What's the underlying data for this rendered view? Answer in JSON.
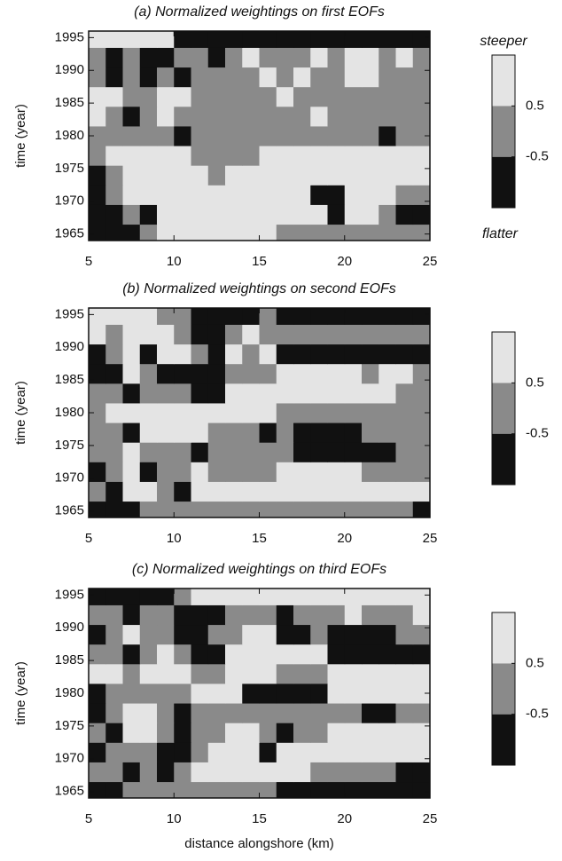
{
  "chart_data": [
    {
      "type": "heatmap",
      "title": "(a) Normalized weightings on first EOFs",
      "ylabel": "time (year)",
      "x": [
        5.5,
        6.5,
        7.5,
        8.5,
        9.5,
        10.5,
        11.5,
        12.5,
        13.5,
        14.5,
        15.5,
        16.5,
        17.5,
        18.5,
        19.5,
        20.5,
        21.5,
        22.5,
        23.5,
        24.5
      ],
      "y": [
        1965,
        1968,
        1971,
        1974,
        1977,
        1980,
        1983,
        1986,
        1989,
        1992,
        1995
      ],
      "z": [
        [
          -1,
          -1,
          -1,
          0,
          1,
          1,
          1,
          1,
          1,
          1,
          1,
          0,
          0,
          0,
          0,
          0,
          0,
          0,
          0,
          0
        ],
        [
          -1,
          -1,
          0,
          -1,
          1,
          1,
          1,
          1,
          1,
          1,
          1,
          1,
          1,
          1,
          -1,
          1,
          1,
          0,
          -1,
          -1
        ],
        [
          -1,
          0,
          1,
          1,
          1,
          1,
          1,
          1,
          1,
          1,
          1,
          1,
          1,
          -1,
          -1,
          1,
          1,
          1,
          0,
          0
        ],
        [
          -1,
          0,
          1,
          1,
          1,
          1,
          1,
          0,
          1,
          1,
          1,
          1,
          1,
          1,
          1,
          1,
          1,
          1,
          1,
          1
        ],
        [
          0,
          1,
          1,
          1,
          1,
          1,
          0,
          0,
          0,
          0,
          1,
          1,
          1,
          1,
          1,
          1,
          1,
          1,
          1,
          1
        ],
        [
          0,
          0,
          0,
          0,
          0,
          -1,
          0,
          0,
          0,
          0,
          0,
          0,
          0,
          0,
          0,
          0,
          0,
          -1,
          0,
          0
        ],
        [
          1,
          0,
          -1,
          0,
          1,
          0,
          0,
          0,
          0,
          0,
          0,
          0,
          0,
          1,
          0,
          0,
          0,
          0,
          0,
          0
        ],
        [
          1,
          1,
          0,
          0,
          1,
          1,
          0,
          0,
          0,
          0,
          0,
          1,
          0,
          0,
          0,
          0,
          0,
          0,
          0,
          0
        ],
        [
          0,
          -1,
          0,
          -1,
          0,
          -1,
          0,
          0,
          0,
          0,
          1,
          0,
          1,
          0,
          0,
          1,
          1,
          0,
          0,
          0
        ],
        [
          0,
          -1,
          0,
          -1,
          -1,
          0,
          0,
          -1,
          0,
          1,
          0,
          0,
          0,
          1,
          0,
          1,
          1,
          0,
          1,
          0
        ],
        [
          1,
          1,
          1,
          1,
          1,
          -1,
          -1,
          -1,
          -1,
          -1,
          -1,
          -1,
          -1,
          -1,
          -1,
          -1,
          -1,
          -1,
          -1,
          -1
        ]
      ],
      "xlim": [
        5,
        25
      ],
      "xticks": [
        5,
        10,
        15,
        20,
        25
      ],
      "ylim": [
        1964,
        1996
      ],
      "yticks": [
        1965,
        1970,
        1975,
        1980,
        1985,
        1990,
        1995
      ],
      "colors": [
        "#111111",
        "#8a8a8a",
        "#e4e4e4"
      ],
      "colorbar": {
        "clim": [
          -1.5,
          1.5
        ],
        "ticks": [
          0.5,
          -0.5
        ],
        "top_label": "steeper",
        "bottom_label": "flatter"
      }
    },
    {
      "type": "heatmap",
      "title": "(b) Normalized weightings on second EOFs",
      "ylabel": "time (year)",
      "x": [
        5.5,
        6.5,
        7.5,
        8.5,
        9.5,
        10.5,
        11.5,
        12.5,
        13.5,
        14.5,
        15.5,
        16.5,
        17.5,
        18.5,
        19.5,
        20.5,
        21.5,
        22.5,
        23.5,
        24.5
      ],
      "y": [
        1965,
        1968,
        1971,
        1974,
        1977,
        1980,
        1983,
        1986,
        1989,
        1992,
        1995
      ],
      "z": [
        [
          -1,
          -1,
          -1,
          0,
          0,
          0,
          0,
          0,
          0,
          0,
          0,
          0,
          0,
          0,
          0,
          0,
          0,
          0,
          0,
          -1
        ],
        [
          0,
          -1,
          1,
          1,
          0,
          -1,
          1,
          1,
          1,
          1,
          1,
          1,
          1,
          1,
          1,
          1,
          1,
          1,
          1,
          1
        ],
        [
          -1,
          0,
          1,
          -1,
          0,
          0,
          1,
          0,
          0,
          0,
          0,
          1,
          1,
          1,
          1,
          1,
          0,
          0,
          0,
          0
        ],
        [
          0,
          0,
          1,
          0,
          0,
          0,
          -1,
          0,
          0,
          0,
          0,
          0,
          -1,
          -1,
          -1,
          -1,
          -1,
          -1,
          0,
          0
        ],
        [
          0,
          0,
          -1,
          1,
          1,
          1,
          1,
          0,
          0,
          0,
          -1,
          0,
          -1,
          -1,
          -1,
          -1,
          0,
          0,
          0,
          0
        ],
        [
          0,
          1,
          1,
          1,
          1,
          1,
          1,
          1,
          1,
          1,
          1,
          0,
          0,
          0,
          0,
          0,
          0,
          0,
          0,
          0
        ],
        [
          0,
          0,
          -1,
          0,
          0,
          0,
          -1,
          -1,
          1,
          1,
          1,
          1,
          1,
          1,
          1,
          1,
          1,
          1,
          0,
          0
        ],
        [
          -1,
          -1,
          1,
          0,
          -1,
          -1,
          -1,
          -1,
          0,
          0,
          0,
          1,
          1,
          1,
          1,
          1,
          0,
          1,
          1,
          0
        ],
        [
          -1,
          0,
          1,
          -1,
          1,
          1,
          0,
          -1,
          1,
          0,
          1,
          -1,
          -1,
          -1,
          -1,
          -1,
          -1,
          -1,
          -1,
          -1
        ],
        [
          1,
          0,
          1,
          1,
          1,
          0,
          -1,
          -1,
          0,
          1,
          0,
          0,
          0,
          0,
          0,
          0,
          0,
          0,
          0,
          0
        ],
        [
          1,
          1,
          1,
          1,
          0,
          0,
          -1,
          -1,
          -1,
          -1,
          0,
          -1,
          -1,
          -1,
          -1,
          -1,
          -1,
          -1,
          -1,
          -1
        ]
      ],
      "xlim": [
        5,
        25
      ],
      "xticks": [
        5,
        10,
        15,
        20,
        25
      ],
      "ylim": [
        1964,
        1996
      ],
      "yticks": [
        1965,
        1970,
        1975,
        1980,
        1985,
        1990,
        1995
      ],
      "colors": [
        "#111111",
        "#8a8a8a",
        "#e4e4e4"
      ],
      "colorbar": {
        "clim": [
          -1.5,
          1.5
        ],
        "ticks": [
          0.5,
          -0.5
        ]
      }
    },
    {
      "type": "heatmap",
      "title": "(c) Normalized weightings on third EOFs",
      "ylabel": "time (year)",
      "xlabel": "distance alongshore (km)",
      "x": [
        5.5,
        6.5,
        7.5,
        8.5,
        9.5,
        10.5,
        11.5,
        12.5,
        13.5,
        14.5,
        15.5,
        16.5,
        17.5,
        18.5,
        19.5,
        20.5,
        21.5,
        22.5,
        23.5,
        24.5
      ],
      "y": [
        1965,
        1968,
        1971,
        1974,
        1977,
        1980,
        1983,
        1986,
        1989,
        1992,
        1995
      ],
      "z": [
        [
          -1,
          -1,
          0,
          0,
          0,
          0,
          0,
          0,
          0,
          0,
          0,
          -1,
          -1,
          -1,
          -1,
          -1,
          -1,
          -1,
          -1,
          -1
        ],
        [
          0,
          0,
          -1,
          0,
          -1,
          0,
          1,
          1,
          1,
          1,
          1,
          1,
          1,
          0,
          0,
          0,
          0,
          0,
          -1,
          -1
        ],
        [
          -1,
          0,
          0,
          0,
          -1,
          -1,
          0,
          1,
          1,
          1,
          -1,
          1,
          1,
          1,
          1,
          1,
          1,
          1,
          1,
          1
        ],
        [
          0,
          -1,
          1,
          1,
          0,
          -1,
          0,
          0,
          1,
          1,
          0,
          -1,
          0,
          0,
          1,
          1,
          1,
          1,
          1,
          1
        ],
        [
          -1,
          0,
          1,
          1,
          0,
          -1,
          0,
          0,
          0,
          0,
          0,
          0,
          0,
          0,
          0,
          0,
          -1,
          -1,
          0,
          0
        ],
        [
          -1,
          0,
          0,
          0,
          0,
          0,
          1,
          1,
          1,
          -1,
          -1,
          -1,
          -1,
          -1,
          1,
          1,
          1,
          1,
          1,
          1
        ],
        [
          1,
          1,
          0,
          1,
          1,
          1,
          0,
          0,
          1,
          1,
          1,
          0,
          0,
          0,
          1,
          1,
          1,
          1,
          1,
          1
        ],
        [
          0,
          0,
          -1,
          0,
          1,
          0,
          -1,
          -1,
          1,
          1,
          1,
          1,
          1,
          1,
          -1,
          -1,
          -1,
          -1,
          -1,
          -1
        ],
        [
          -1,
          0,
          1,
          0,
          0,
          -1,
          -1,
          0,
          0,
          1,
          1,
          -1,
          -1,
          0,
          -1,
          -1,
          -1,
          -1,
          0,
          0
        ],
        [
          0,
          0,
          -1,
          0,
          0,
          -1,
          -1,
          -1,
          0,
          0,
          0,
          -1,
          0,
          0,
          0,
          1,
          0,
          0,
          0,
          1
        ],
        [
          -1,
          -1,
          -1,
          -1,
          -1,
          0,
          1,
          1,
          1,
          1,
          1,
          1,
          1,
          1,
          1,
          1,
          1,
          1,
          1,
          1
        ]
      ],
      "xlim": [
        5,
        25
      ],
      "xticks": [
        5,
        10,
        15,
        20,
        25
      ],
      "ylim": [
        1964,
        1996
      ],
      "yticks": [
        1965,
        1970,
        1975,
        1980,
        1985,
        1990,
        1995
      ],
      "colors": [
        "#111111",
        "#8a8a8a",
        "#e4e4e4"
      ],
      "colorbar": {
        "clim": [
          -1.5,
          1.5
        ],
        "ticks": [
          0.5,
          -0.5
        ]
      }
    }
  ]
}
